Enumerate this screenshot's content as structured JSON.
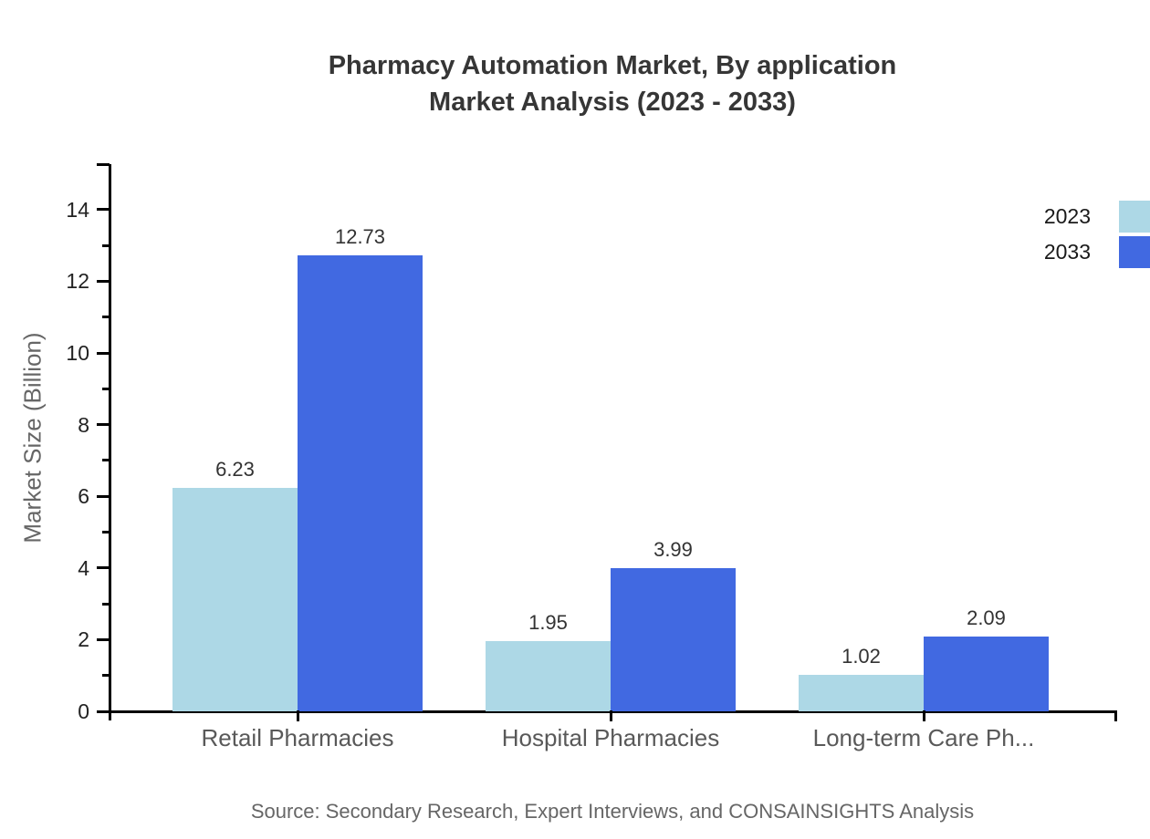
{
  "title": {
    "line1": "Pharmacy Automation Market, By application",
    "line2": "Market Analysis (2023 - 2033)"
  },
  "ylabel": "Market Size (Billion)",
  "source": "Source: Secondary Research, Expert Interviews, and CONSAINSIGHTS Analysis",
  "legend": [
    {
      "label": "2023",
      "color": "#ADD8E6"
    },
    {
      "label": "2033",
      "color": "#4169E1"
    }
  ],
  "colors": {
    "axis": "#000000",
    "title_text": "#363636",
    "tick_text": "#222222",
    "value_text": "#333333",
    "category_text": "#595959",
    "muted_text": "#666666",
    "background": "#ffffff",
    "series_2023": "#ADD8E6",
    "series_2033": "#4169E1"
  },
  "chart_data": {
    "type": "bar",
    "title": "Pharmacy Automation Market, By application Market Analysis (2023 - 2033)",
    "xlabel": "",
    "ylabel": "Market Size (Billion)",
    "categories": [
      "Retail Pharmacies",
      "Hospital Pharmacies",
      "Long-term Care Ph..."
    ],
    "series": [
      {
        "name": "2023",
        "color": "#ADD8E6",
        "values": [
          6.23,
          1.95,
          1.02
        ]
      },
      {
        "name": "2033",
        "color": "#4169E1",
        "values": [
          12.73,
          3.99,
          2.09
        ]
      }
    ],
    "ylim": [
      0,
      15.27
    ],
    "yticks_major": [
      0,
      2,
      4,
      6,
      8,
      10,
      12,
      14
    ],
    "yticks_minor": [
      1,
      3,
      5,
      7,
      9,
      11,
      13
    ],
    "grid": false,
    "legend_position": "top-right",
    "value_labels_shown": true
  }
}
